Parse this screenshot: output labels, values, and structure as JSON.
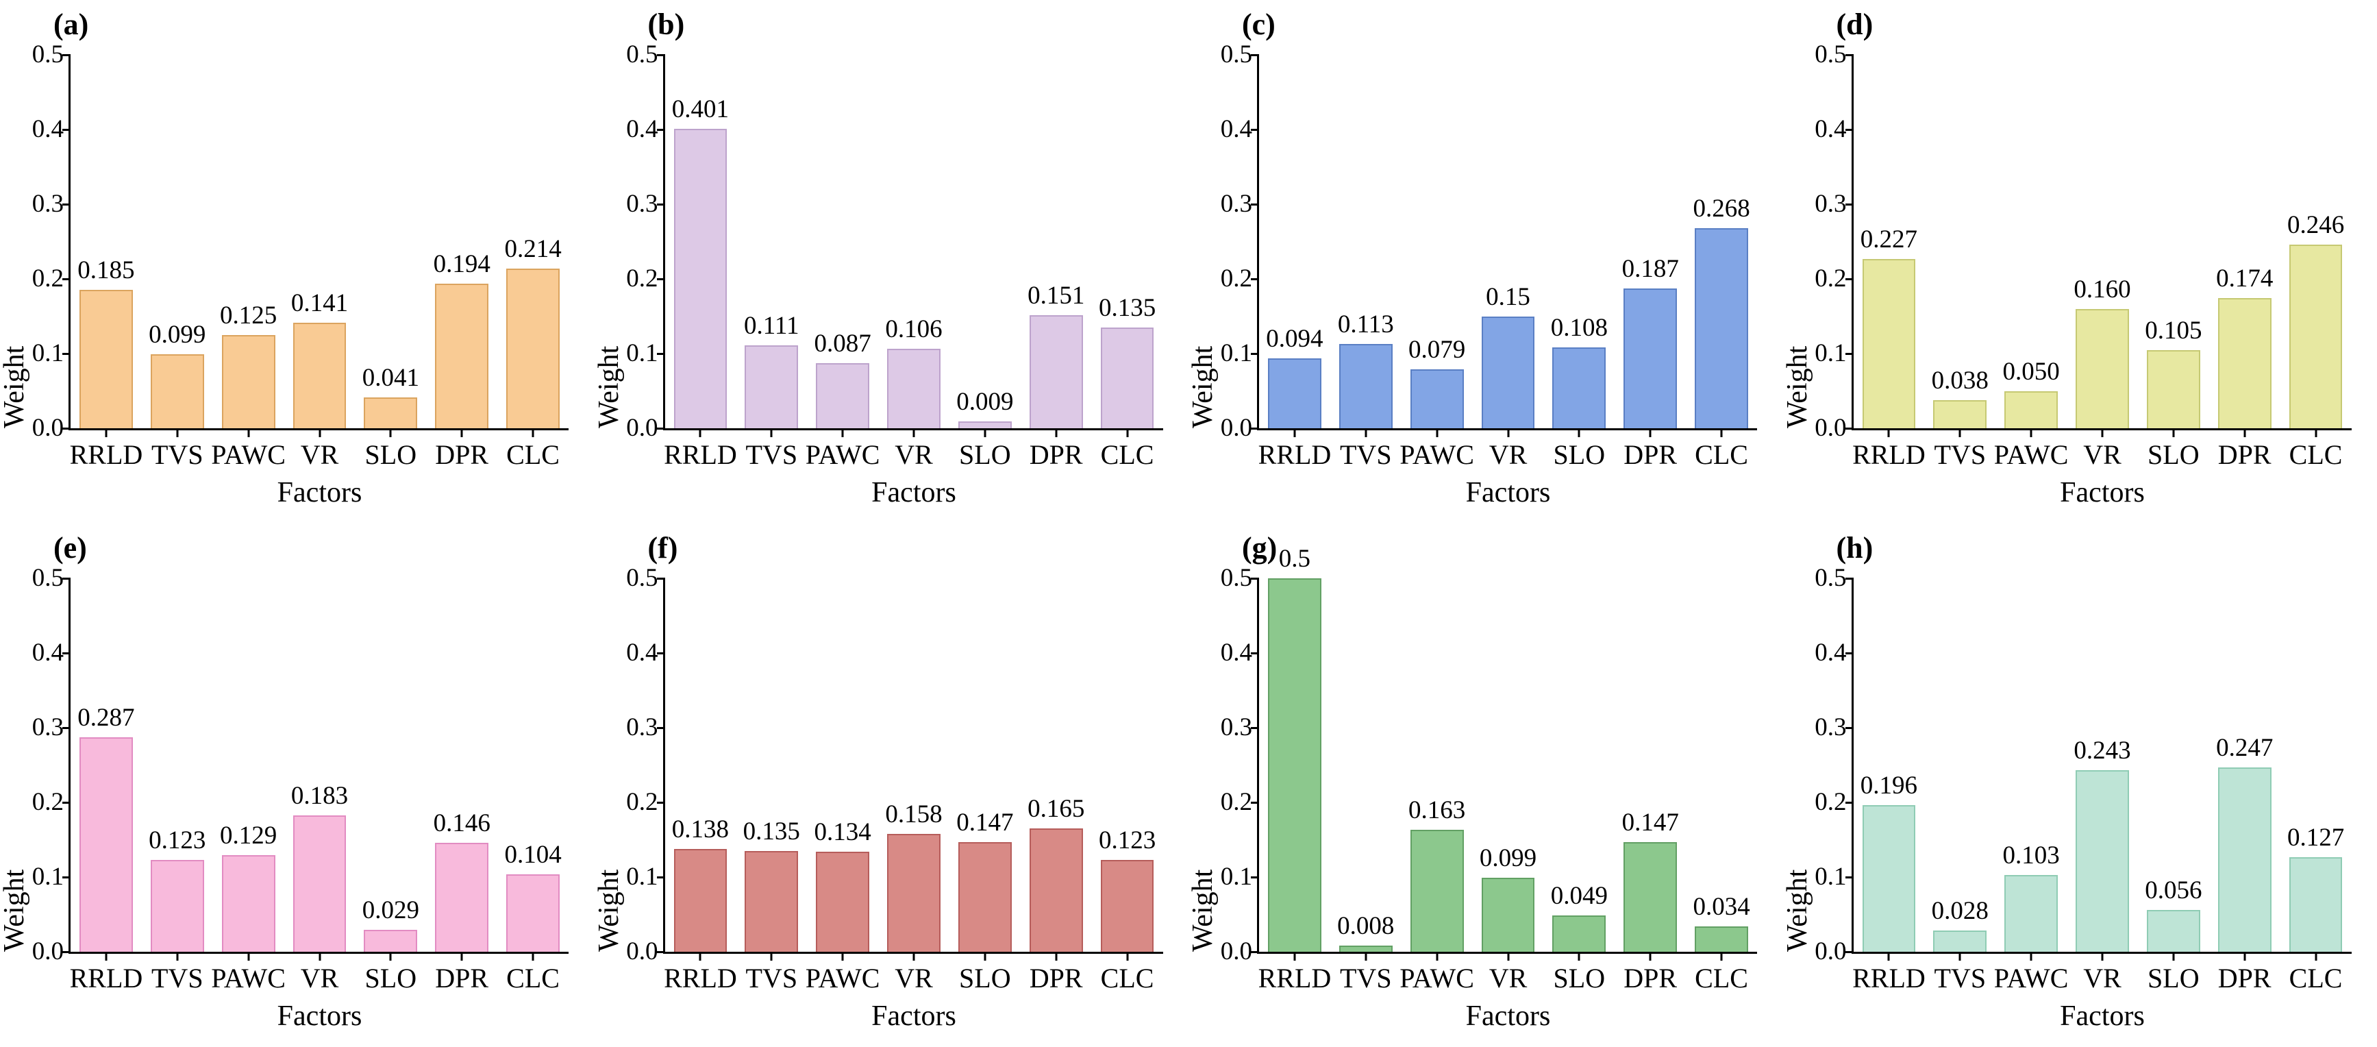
{
  "figure": {
    "background": "#ffffff",
    "axis_color": "#000000",
    "text_color": "#000000",
    "layout": "2 rows x 4 columns of bar charts",
    "grid": "off",
    "legend": "none"
  },
  "chart_data": [
    {
      "type": "bar",
      "panel_label": "(a)",
      "xlabel": "Factors",
      "ylabel": "Weight",
      "ylim": [
        0,
        0.5
      ],
      "yticks": [
        "0.0",
        "0.1",
        "0.2",
        "0.3",
        "0.4",
        "0.5"
      ],
      "categories": [
        "RRLD",
        "TVS",
        "PAWC",
        "VR",
        "SLO",
        "DPR",
        "CLC"
      ],
      "values": [
        0.185,
        0.099,
        0.125,
        0.141,
        0.041,
        0.194,
        0.214
      ],
      "value_labels": [
        "0.185",
        "0.099",
        "0.125",
        "0.141",
        "0.041",
        "0.194",
        "0.214"
      ],
      "bar_color": "#f9cb94",
      "bar_edge_color": "#dba45f"
    },
    {
      "type": "bar",
      "panel_label": "(b)",
      "xlabel": "Factors",
      "ylabel": "Weight",
      "ylim": [
        0,
        0.5
      ],
      "yticks": [
        "0.0",
        "0.1",
        "0.2",
        "0.3",
        "0.4",
        "0.5"
      ],
      "categories": [
        "RRLD",
        "TVS",
        "PAWC",
        "VR",
        "SLO",
        "DPR",
        "CLC"
      ],
      "values": [
        0.401,
        0.111,
        0.087,
        0.106,
        0.009,
        0.151,
        0.135
      ],
      "value_labels": [
        "0.401",
        "0.111",
        "0.087",
        "0.106",
        "0.009",
        "0.151",
        "0.135"
      ],
      "bar_color": "#ddc9e6",
      "bar_edge_color": "#bda3cc"
    },
    {
      "type": "bar",
      "panel_label": "(c)",
      "xlabel": "Factors",
      "ylabel": "Weight",
      "ylim": [
        0,
        0.5
      ],
      "yticks": [
        "0.0",
        "0.1",
        "0.2",
        "0.3",
        "0.4",
        "0.5"
      ],
      "categories": [
        "RRLD",
        "TVS",
        "PAWC",
        "VR",
        "SLO",
        "DPR",
        "CLC"
      ],
      "values": [
        0.094,
        0.113,
        0.079,
        0.15,
        0.108,
        0.187,
        0.268
      ],
      "value_labels": [
        "0.094",
        "0.113",
        "0.079",
        "0.15",
        "0.108",
        "0.187",
        "0.268"
      ],
      "bar_color": "#82a5e5",
      "bar_edge_color": "#5a7fc4"
    },
    {
      "type": "bar",
      "panel_label": "(d)",
      "xlabel": "Factors",
      "ylabel": "Weight",
      "ylim": [
        0,
        0.5
      ],
      "yticks": [
        "0.0",
        "0.1",
        "0.2",
        "0.3",
        "0.4",
        "0.5"
      ],
      "categories": [
        "RRLD",
        "TVS",
        "PAWC",
        "VR",
        "SLO",
        "DPR",
        "CLC"
      ],
      "values": [
        0.227,
        0.038,
        0.05,
        0.16,
        0.105,
        0.174,
        0.246
      ],
      "value_labels": [
        "0.227",
        "0.038",
        "0.050",
        "0.160",
        "0.105",
        "0.174",
        "0.246"
      ],
      "bar_color": "#e7e8a1",
      "bar_edge_color": "#c6c973"
    },
    {
      "type": "bar",
      "panel_label": "(e)",
      "xlabel": "Factors",
      "ylabel": "Weight",
      "ylim": [
        0,
        0.5
      ],
      "yticks": [
        "0.0",
        "0.1",
        "0.2",
        "0.3",
        "0.4",
        "0.5"
      ],
      "categories": [
        "RRLD",
        "TVS",
        "PAWC",
        "VR",
        "SLO",
        "DPR",
        "CLC"
      ],
      "values": [
        0.287,
        0.123,
        0.129,
        0.183,
        0.029,
        0.146,
        0.104
      ],
      "value_labels": [
        "0.287",
        "0.123",
        "0.129",
        "0.183",
        "0.029",
        "0.146",
        "0.104"
      ],
      "bar_color": "#f8badc",
      "bar_edge_color": "#e28cc2"
    },
    {
      "type": "bar",
      "panel_label": "(f)",
      "xlabel": "Factors",
      "ylabel": "Weight",
      "ylim": [
        0,
        0.5
      ],
      "yticks": [
        "0.0",
        "0.1",
        "0.2",
        "0.3",
        "0.4",
        "0.5"
      ],
      "categories": [
        "RRLD",
        "TVS",
        "PAWC",
        "VR",
        "SLO",
        "DPR",
        "CLC"
      ],
      "values": [
        0.138,
        0.135,
        0.134,
        0.158,
        0.147,
        0.165,
        0.123
      ],
      "value_labels": [
        "0.138",
        "0.135",
        "0.134",
        "0.158",
        "0.147",
        "0.165",
        "0.123"
      ],
      "bar_color": "#d88a86",
      "bar_edge_color": "#b65d5b"
    },
    {
      "type": "bar",
      "panel_label": "(g)",
      "xlabel": "Factors",
      "ylabel": "Weight",
      "ylim": [
        0,
        0.5
      ],
      "yticks": [
        "0.0",
        "0.1",
        "0.2",
        "0.3",
        "0.4",
        "0.5"
      ],
      "categories": [
        "RRLD",
        "TVS",
        "PAWC",
        "VR",
        "SLO",
        "DPR",
        "CLC"
      ],
      "values": [
        0.5,
        0.008,
        0.163,
        0.099,
        0.049,
        0.147,
        0.034
      ],
      "value_labels": [
        "0.5",
        "0.008",
        "0.163",
        "0.099",
        "0.049",
        "0.147",
        "0.034"
      ],
      "bar_color": "#8cc88d",
      "bar_edge_color": "#62a064"
    },
    {
      "type": "bar",
      "panel_label": "(h)",
      "xlabel": "Factors",
      "ylabel": "Weight",
      "ylim": [
        0,
        0.5
      ],
      "yticks": [
        "0.0",
        "0.1",
        "0.2",
        "0.3",
        "0.4",
        "0.5"
      ],
      "categories": [
        "RRLD",
        "TVS",
        "PAWC",
        "VR",
        "SLO",
        "DPR",
        "CLC"
      ],
      "values": [
        0.196,
        0.028,
        0.103,
        0.243,
        0.056,
        0.247,
        0.127
      ],
      "value_labels": [
        "0.196",
        "0.028",
        "0.103",
        "0.243",
        "0.056",
        "0.247",
        "0.127"
      ],
      "bar_color": "#bee4d6",
      "bar_edge_color": "#8fccb4"
    }
  ]
}
